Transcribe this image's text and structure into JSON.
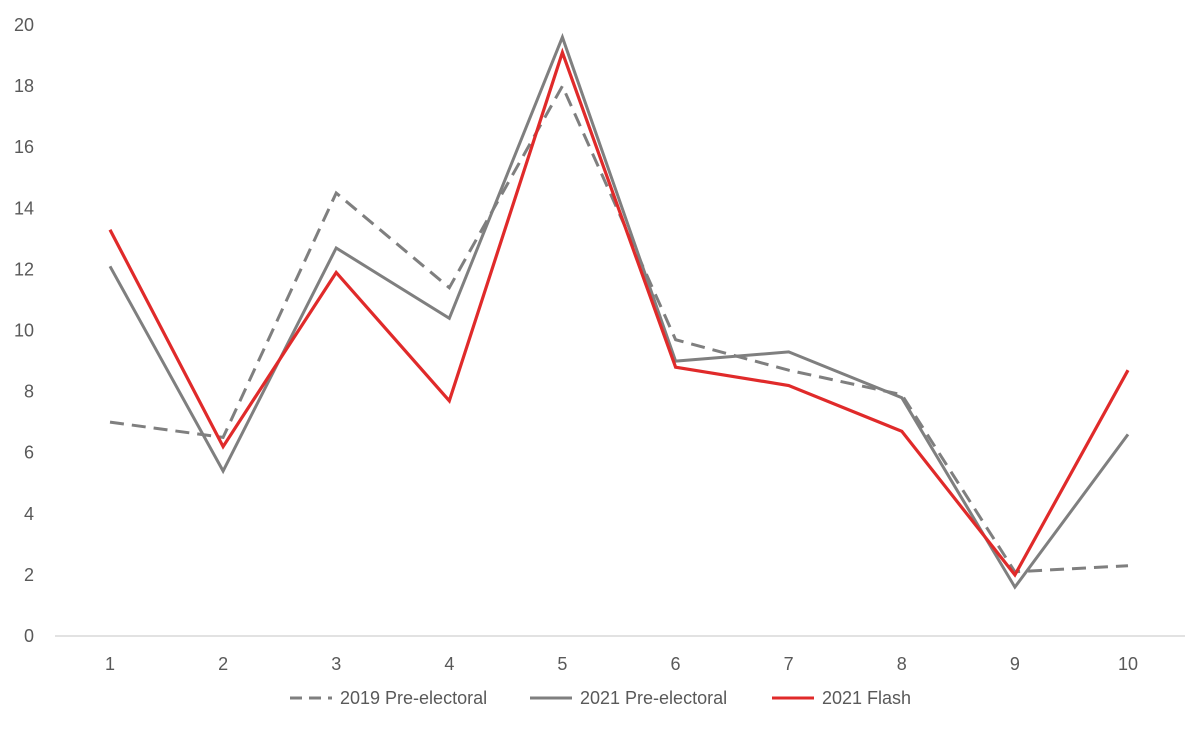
{
  "chart_data": {
    "type": "line",
    "title": "",
    "xlabel": "",
    "ylabel": "",
    "x": [
      1,
      2,
      3,
      4,
      5,
      6,
      7,
      8,
      9,
      10
    ],
    "ylim": [
      0,
      20
    ],
    "yticks": [
      0,
      2,
      4,
      6,
      8,
      10,
      12,
      14,
      16,
      18,
      20
    ],
    "grid": false,
    "legend_position": "bottom",
    "series": [
      {
        "name": "2019 Pre-electoral",
        "values": [
          7.0,
          6.5,
          14.5,
          11.4,
          18.0,
          9.7,
          8.7,
          7.9,
          2.1,
          2.3
        ],
        "color": "#7f7f7f",
        "style": "dashed"
      },
      {
        "name": "2021 Pre-electoral",
        "values": [
          12.1,
          5.4,
          12.7,
          10.4,
          19.6,
          9.0,
          9.3,
          7.8,
          1.6,
          6.6
        ],
        "color": "#7f7f7f",
        "style": "solid"
      },
      {
        "name": "2021 Flash",
        "values": [
          13.3,
          6.2,
          11.9,
          7.7,
          19.1,
          8.8,
          8.2,
          6.7,
          2.0,
          8.7
        ],
        "color": "#e02a2a",
        "style": "solid"
      }
    ]
  }
}
